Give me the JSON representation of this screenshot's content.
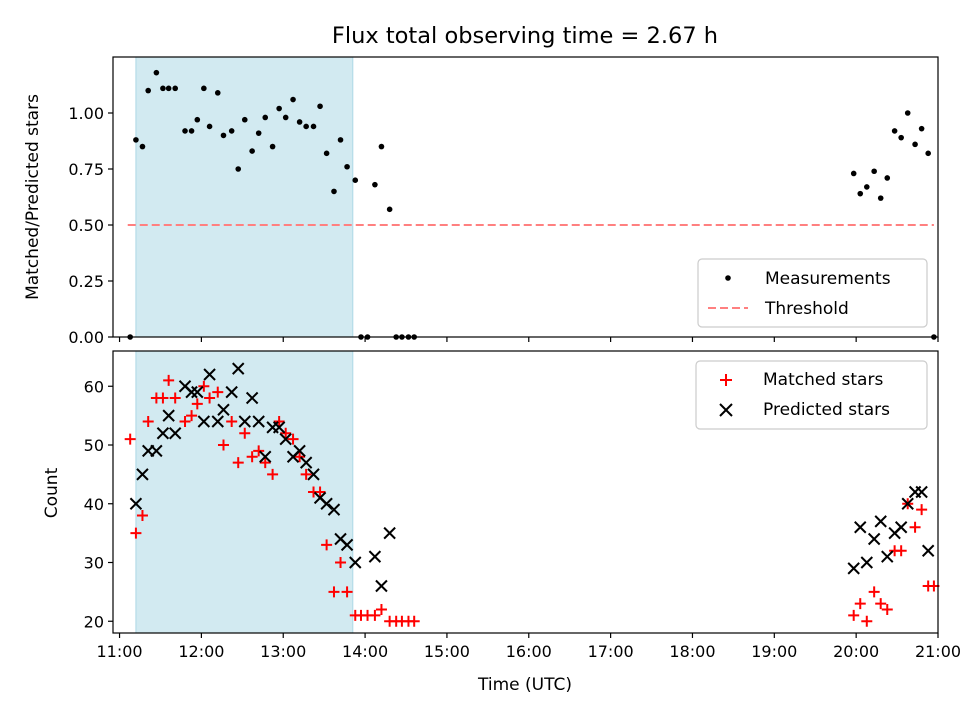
{
  "chart_data": [
    {
      "type": "scatter",
      "title": "Flux total observing time = 2.67 h",
      "xlabel": "",
      "ylabel": "Matched/Predicted stars",
      "xlim": [
        10.92,
        21.0
      ],
      "ylim": [
        0.0,
        1.25
      ],
      "yticks": [
        0.0,
        0.25,
        0.5,
        0.75,
        1.0
      ],
      "ytick_labels": [
        "0.00",
        "0.25",
        "0.50",
        "0.75",
        "1.00"
      ],
      "shaded_band": {
        "x_start": 11.2,
        "x_end": 13.85,
        "color": "#add8e6"
      },
      "threshold": {
        "value": 0.5,
        "x_start": 11.1,
        "x_end": 20.95,
        "color": "#ff8080",
        "label": "Threshold"
      },
      "legend": {
        "position": "bottom-right",
        "items": [
          "Measurements",
          "Threshold"
        ]
      },
      "series": [
        {
          "name": "Measurements",
          "marker": "dot",
          "color": "#000000",
          "points": [
            [
              11.13,
              0.0
            ],
            [
              11.2,
              0.88
            ],
            [
              11.28,
              0.85
            ],
            [
              11.35,
              1.1
            ],
            [
              11.45,
              1.18
            ],
            [
              11.53,
              1.11
            ],
            [
              11.6,
              1.11
            ],
            [
              11.68,
              1.11
            ],
            [
              11.8,
              0.92
            ],
            [
              11.88,
              0.92
            ],
            [
              11.95,
              0.97
            ],
            [
              12.03,
              1.11
            ],
            [
              12.1,
              0.94
            ],
            [
              12.2,
              1.09
            ],
            [
              12.27,
              0.9
            ],
            [
              12.37,
              0.92
            ],
            [
              12.45,
              0.75
            ],
            [
              12.53,
              0.97
            ],
            [
              12.62,
              0.83
            ],
            [
              12.7,
              0.91
            ],
            [
              12.78,
              0.98
            ],
            [
              12.87,
              0.85
            ],
            [
              12.95,
              1.02
            ],
            [
              13.03,
              0.98
            ],
            [
              13.12,
              1.06
            ],
            [
              13.2,
              0.96
            ],
            [
              13.28,
              0.94
            ],
            [
              13.37,
              0.94
            ],
            [
              13.45,
              1.03
            ],
            [
              13.53,
              0.82
            ],
            [
              13.62,
              0.65
            ],
            [
              13.7,
              0.88
            ],
            [
              13.78,
              0.76
            ],
            [
              13.88,
              0.7
            ],
            [
              13.95,
              0.0
            ],
            [
              14.03,
              0.0
            ],
            [
              14.12,
              0.68
            ],
            [
              14.2,
              0.85
            ],
            [
              14.3,
              0.57
            ],
            [
              14.38,
              0.0
            ],
            [
              14.45,
              0.0
            ],
            [
              14.53,
              0.0
            ],
            [
              14.6,
              0.0
            ],
            [
              19.97,
              0.73
            ],
            [
              20.05,
              0.64
            ],
            [
              20.13,
              0.67
            ],
            [
              20.22,
              0.74
            ],
            [
              20.3,
              0.62
            ],
            [
              20.38,
              0.71
            ],
            [
              20.47,
              0.92
            ],
            [
              20.55,
              0.89
            ],
            [
              20.63,
              1.0
            ],
            [
              20.72,
              0.86
            ],
            [
              20.8,
              0.93
            ],
            [
              20.88,
              0.82
            ],
            [
              20.95,
              0.0
            ]
          ]
        }
      ]
    },
    {
      "type": "scatter",
      "title": "",
      "xlabel": "Time (UTC)",
      "ylabel": "Count",
      "xlim": [
        10.92,
        21.0
      ],
      "ylim": [
        18,
        66
      ],
      "yticks": [
        20,
        30,
        40,
        50,
        60
      ],
      "ytick_labels": [
        "20",
        "30",
        "40",
        "50",
        "60"
      ],
      "xticks": [
        11,
        12,
        13,
        14,
        15,
        16,
        17,
        18,
        19,
        20,
        21
      ],
      "xtick_labels": [
        "11:00",
        "12:00",
        "13:00",
        "14:00",
        "15:00",
        "16:00",
        "17:00",
        "18:00",
        "19:00",
        "20:00",
        "21:00"
      ],
      "shaded_band": {
        "x_start": 11.2,
        "x_end": 13.85,
        "color": "#add8e6"
      },
      "legend": {
        "position": "top-right",
        "items": [
          "Matched stars",
          "Predicted stars"
        ]
      },
      "series": [
        {
          "name": "Matched stars",
          "marker": "plus",
          "color": "#ff0000",
          "points": [
            [
              11.13,
              51
            ],
            [
              11.2,
              35
            ],
            [
              11.28,
              38
            ],
            [
              11.35,
              54
            ],
            [
              11.45,
              58
            ],
            [
              11.53,
              58
            ],
            [
              11.6,
              61
            ],
            [
              11.68,
              58
            ],
            [
              11.8,
              54
            ],
            [
              11.88,
              55
            ],
            [
              11.95,
              57
            ],
            [
              12.03,
              60
            ],
            [
              12.1,
              58
            ],
            [
              12.2,
              59
            ],
            [
              12.27,
              50
            ],
            [
              12.37,
              54
            ],
            [
              12.45,
              47
            ],
            [
              12.53,
              52
            ],
            [
              12.62,
              48
            ],
            [
              12.7,
              49
            ],
            [
              12.78,
              47
            ],
            [
              12.87,
              45
            ],
            [
              12.95,
              54
            ],
            [
              13.03,
              52
            ],
            [
              13.12,
              51
            ],
            [
              13.2,
              48
            ],
            [
              13.28,
              45
            ],
            [
              13.37,
              42
            ],
            [
              13.45,
              42
            ],
            [
              13.53,
              33
            ],
            [
              13.62,
              25
            ],
            [
              13.7,
              30
            ],
            [
              13.78,
              25
            ],
            [
              13.88,
              21
            ],
            [
              13.95,
              21
            ],
            [
              14.03,
              21
            ],
            [
              14.12,
              21
            ],
            [
              14.2,
              22
            ],
            [
              14.3,
              20
            ],
            [
              14.38,
              20
            ],
            [
              14.45,
              20
            ],
            [
              14.53,
              20
            ],
            [
              14.6,
              20
            ],
            [
              19.97,
              21
            ],
            [
              20.05,
              23
            ],
            [
              20.13,
              20
            ],
            [
              20.22,
              25
            ],
            [
              20.3,
              23
            ],
            [
              20.38,
              22
            ],
            [
              20.47,
              32
            ],
            [
              20.55,
              32
            ],
            [
              20.63,
              40
            ],
            [
              20.72,
              36
            ],
            [
              20.8,
              39
            ],
            [
              20.88,
              26
            ],
            [
              20.95,
              26
            ]
          ]
        },
        {
          "name": "Predicted stars",
          "marker": "x",
          "color": "#000000",
          "points": [
            [
              11.2,
              40
            ],
            [
              11.28,
              45
            ],
            [
              11.35,
              49
            ],
            [
              11.45,
              49
            ],
            [
              11.53,
              52
            ],
            [
              11.6,
              55
            ],
            [
              11.68,
              52
            ],
            [
              11.8,
              60
            ],
            [
              11.88,
              59
            ],
            [
              11.95,
              59
            ],
            [
              12.03,
              54
            ],
            [
              12.1,
              62
            ],
            [
              12.2,
              54
            ],
            [
              12.27,
              56
            ],
            [
              12.37,
              59
            ],
            [
              12.45,
              63
            ],
            [
              12.53,
              54
            ],
            [
              12.62,
              58
            ],
            [
              12.7,
              54
            ],
            [
              12.78,
              48
            ],
            [
              12.87,
              53
            ],
            [
              12.95,
              53
            ],
            [
              13.03,
              51
            ],
            [
              13.12,
              48
            ],
            [
              13.2,
              49
            ],
            [
              13.28,
              47
            ],
            [
              13.37,
              45
            ],
            [
              13.45,
              41
            ],
            [
              13.53,
              40
            ],
            [
              13.62,
              39
            ],
            [
              13.7,
              34
            ],
            [
              13.78,
              33
            ],
            [
              13.88,
              30
            ],
            [
              14.12,
              31
            ],
            [
              14.2,
              26
            ],
            [
              14.3,
              35
            ],
            [
              19.97,
              29
            ],
            [
              20.05,
              36
            ],
            [
              20.13,
              30
            ],
            [
              20.22,
              34
            ],
            [
              20.3,
              37
            ],
            [
              20.38,
              31
            ],
            [
              20.47,
              35
            ],
            [
              20.55,
              36
            ],
            [
              20.63,
              40
            ],
            [
              20.72,
              42
            ],
            [
              20.8,
              42
            ],
            [
              20.88,
              32
            ]
          ]
        }
      ]
    }
  ]
}
